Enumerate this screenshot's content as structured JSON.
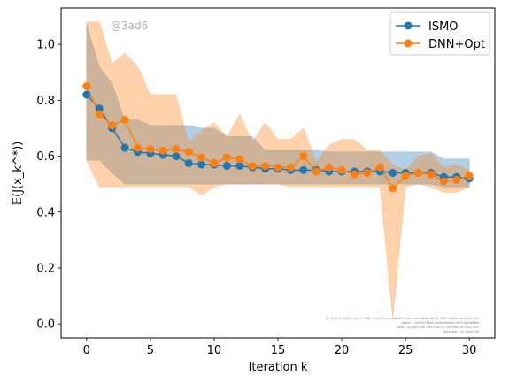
{
  "chart_data": {
    "type": "line",
    "xlabel": "Iteration k",
    "ylabel": "𝔼(J(x_k^*))",
    "xlim": [
      -2,
      32
    ],
    "ylim": [
      -0.05,
      1.13
    ],
    "xticks": [
      0,
      5,
      10,
      15,
      20,
      25,
      30
    ],
    "yticks": [
      0.0,
      0.2,
      0.4,
      0.6,
      0.8,
      1.0
    ],
    "grid": false,
    "legend_position": "top-right",
    "watermark": "@3ad6",
    "footer_lines": [
      "By Kjetil Olsen Lye @ ETHZ (kjetil.o.lye@gmail.com) and Deep Ray @ EPFL <deep.ray@epfl.ch>",
      "Commit: 3a01d2333e91ce9b1e0de9ac1963f4a8fb6bb8",
      "Repo: git@github.com/kjetil-lye/ismo_airfoil.git",
      "Hostname: ip.login.05"
    ],
    "x": [
      0,
      1,
      2,
      3,
      4,
      5,
      6,
      7,
      8,
      9,
      10,
      11,
      12,
      13,
      14,
      15,
      16,
      17,
      18,
      19,
      20,
      21,
      22,
      23,
      24,
      25,
      26,
      27,
      28,
      29,
      30
    ],
    "series": [
      {
        "name": "ISMO",
        "color": "#1f77b4",
        "mean": [
          0.82,
          0.77,
          0.7,
          0.63,
          0.615,
          0.61,
          0.605,
          0.6,
          0.575,
          0.57,
          0.57,
          0.565,
          0.565,
          0.56,
          0.555,
          0.555,
          0.55,
          0.55,
          0.55,
          0.545,
          0.545,
          0.545,
          0.545,
          0.545,
          0.54,
          0.54,
          0.54,
          0.54,
          0.525,
          0.525,
          0.52
        ],
        "lower": [
          0.585,
          0.585,
          0.54,
          0.5,
          0.5,
          0.5,
          0.5,
          0.5,
          0.5,
          0.5,
          0.5,
          0.5,
          0.5,
          0.5,
          0.5,
          0.5,
          0.5,
          0.5,
          0.5,
          0.5,
          0.5,
          0.5,
          0.5,
          0.5,
          0.5,
          0.5,
          0.5,
          0.5,
          0.49,
          0.49,
          0.49
        ],
        "upper": [
          1.07,
          0.92,
          0.86,
          0.73,
          0.73,
          0.71,
          0.71,
          0.71,
          0.71,
          0.7,
          0.7,
          0.67,
          0.67,
          0.67,
          0.62,
          0.62,
          0.62,
          0.62,
          0.62,
          0.615,
          0.615,
          0.615,
          0.615,
          0.615,
          0.615,
          0.615,
          0.615,
          0.615,
          0.59,
          0.59,
          0.59
        ]
      },
      {
        "name": "DNN+Opt",
        "color": "#ff7f0e",
        "mean": [
          0.85,
          0.75,
          0.71,
          0.73,
          0.63,
          0.625,
          0.62,
          0.625,
          0.615,
          0.595,
          0.575,
          0.595,
          0.59,
          0.565,
          0.565,
          0.56,
          0.56,
          0.6,
          0.545,
          0.56,
          0.55,
          0.535,
          0.54,
          0.56,
          0.485,
          0.53,
          0.54,
          0.535,
          0.51,
          0.515,
          0.53
        ],
        "lower": [
          0.585,
          0.49,
          0.49,
          0.49,
          0.49,
          0.49,
          0.49,
          0.49,
          0.49,
          0.46,
          0.49,
          0.5,
          0.5,
          0.5,
          0.5,
          0.5,
          0.49,
          0.49,
          0.49,
          0.49,
          0.49,
          0.49,
          0.49,
          0.49,
          0.02,
          0.49,
          0.5,
          0.49,
          0.47,
          0.47,
          0.49
        ],
        "upper": [
          1.08,
          1.08,
          0.93,
          0.97,
          0.92,
          0.82,
          0.82,
          0.82,
          0.65,
          0.69,
          0.72,
          0.67,
          0.75,
          0.65,
          0.72,
          0.66,
          0.66,
          0.7,
          0.58,
          0.64,
          0.66,
          0.66,
          0.62,
          0.62,
          0.57,
          0.55,
          0.6,
          0.61,
          0.56,
          0.57,
          0.55
        ]
      }
    ]
  }
}
